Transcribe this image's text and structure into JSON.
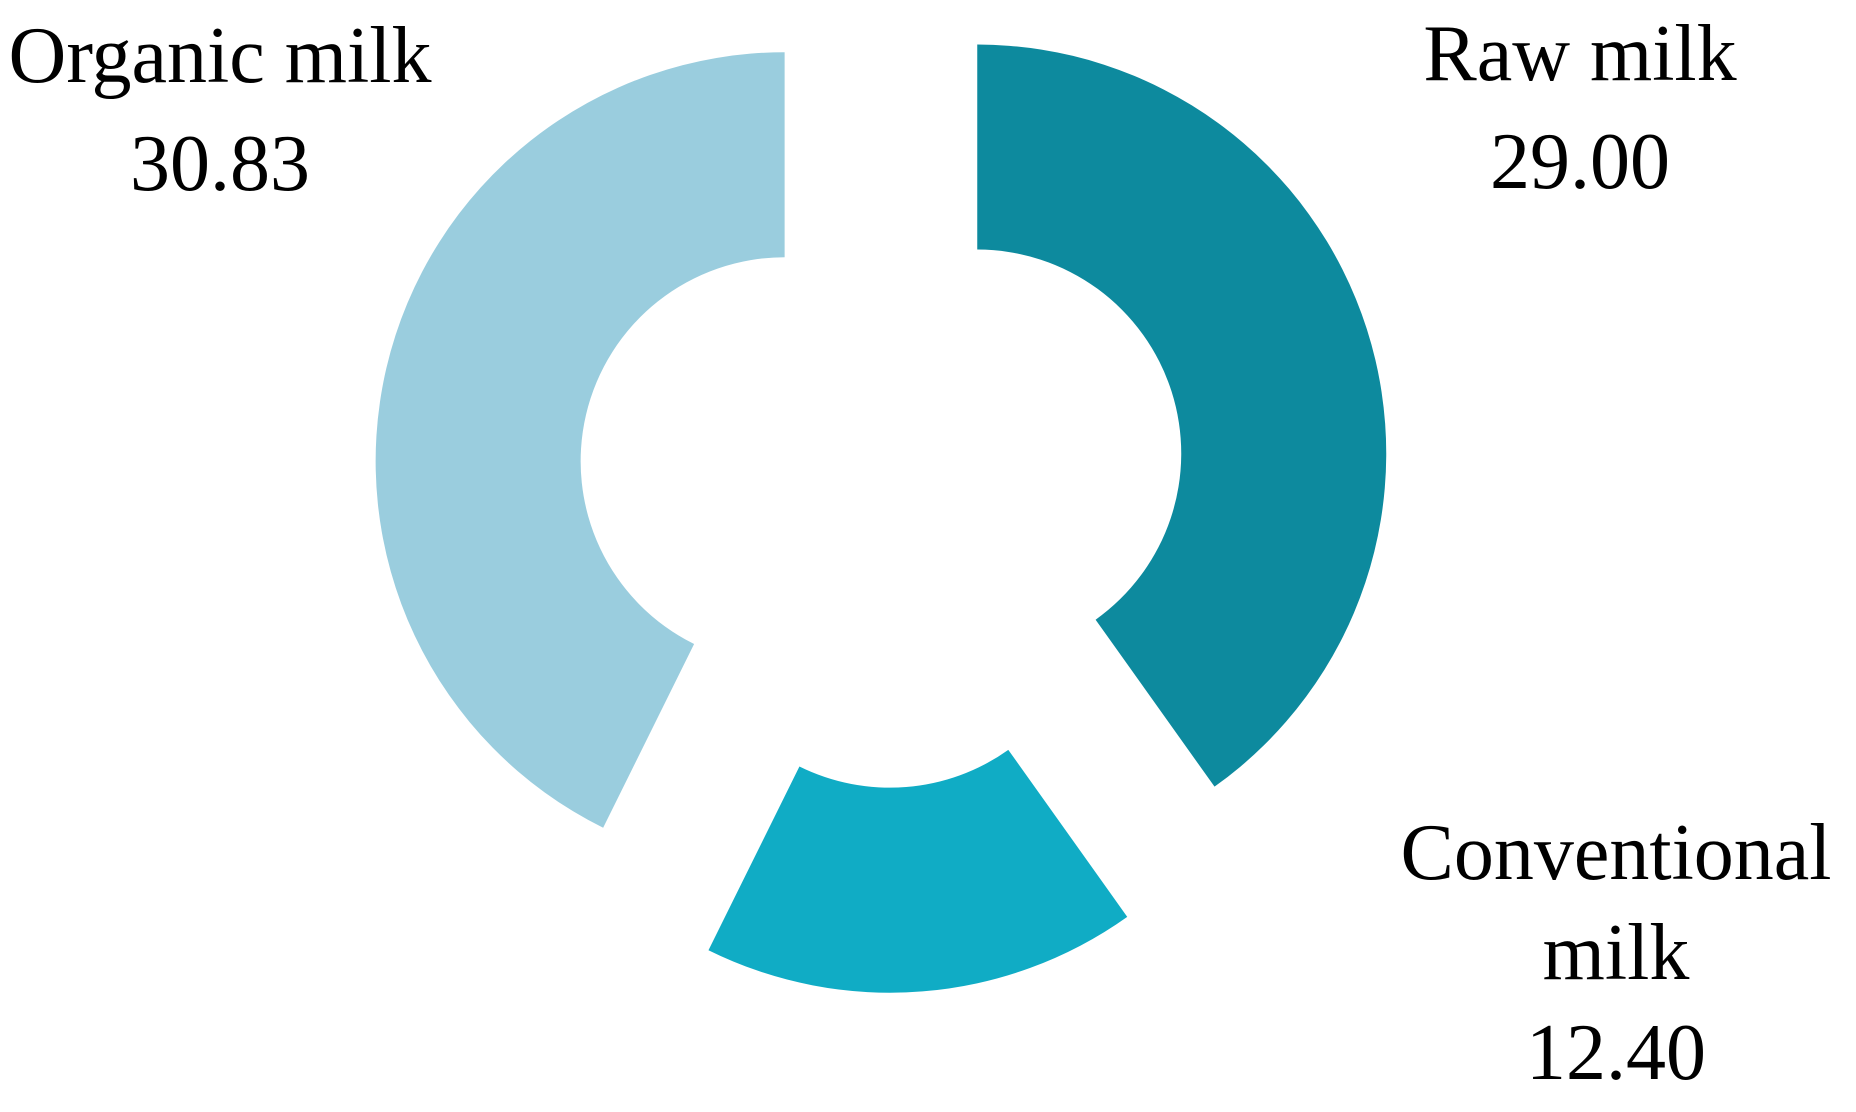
{
  "chart_data": {
    "type": "pie",
    "subtype": "exploded-doughnut",
    "title": "",
    "legend": "none",
    "hole_ratio": 0.5,
    "start_angle_deg": 0,
    "direction": "clockwise",
    "slices": [
      {
        "label": "Raw milk",
        "value": 29.0,
        "value_text": "29.00",
        "color": "#0D8A9E"
      },
      {
        "label": "Conventional milk",
        "value": 12.4,
        "value_text": "12.40",
        "color": "#10ACC5"
      },
      {
        "label": "Organic milk",
        "value": 30.83,
        "value_text": "30.83",
        "color": "#9ACDDE"
      }
    ]
  },
  "annotations": {
    "organic": {
      "line1": "Organic milk",
      "line2": "30.83"
    },
    "raw": {
      "line1": "Raw milk",
      "line2": "29.00"
    },
    "conventional": {
      "line1": "Conventional",
      "line2": "milk",
      "line3": "12.40"
    }
  },
  "colors": {
    "background": "#ffffff",
    "text": "#000000",
    "organic": "#9ACDDE",
    "raw": "#0D8A9E",
    "conventional": "#10ACC5"
  }
}
